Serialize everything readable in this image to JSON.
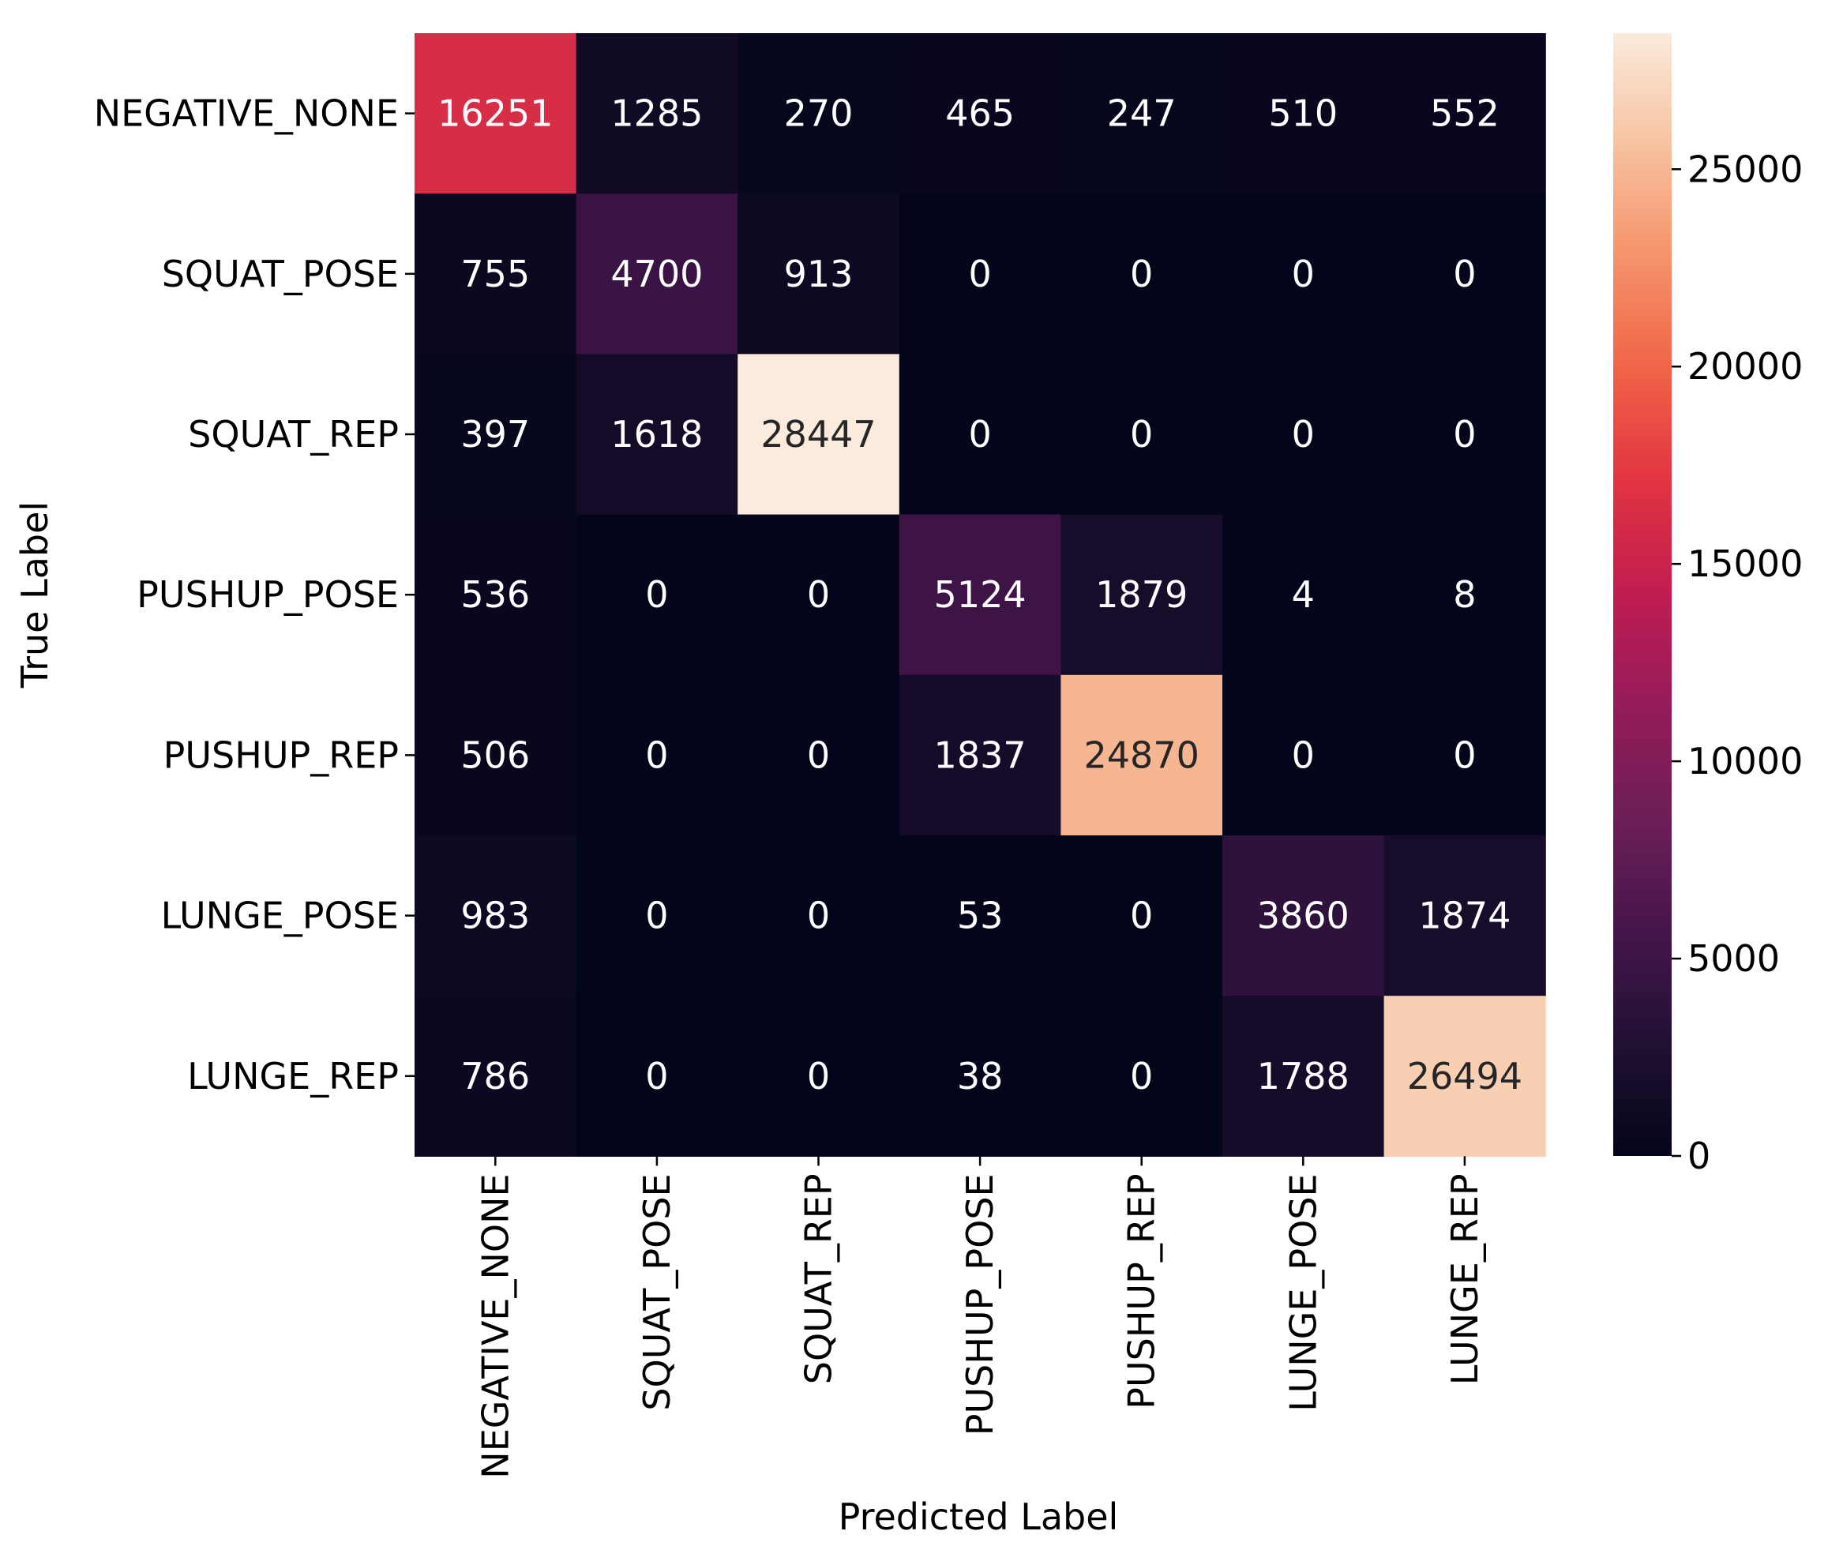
{
  "chart_data": {
    "type": "heatmap",
    "title": "",
    "xlabel": "Predicted Label",
    "ylabel": "True Label",
    "x_categories": [
      "NEGATIVE_NONE",
      "SQUAT_POSE",
      "SQUAT_REP",
      "PUSHUP_POSE",
      "PUSHUP_REP",
      "LUNGE_POSE",
      "LUNGE_REP"
    ],
    "y_categories": [
      "NEGATIVE_NONE",
      "SQUAT_POSE",
      "SQUAT_REP",
      "PUSHUP_POSE",
      "PUSHUP_REP",
      "LUNGE_POSE",
      "LUNGE_REP"
    ],
    "values": [
      [
        16251,
        1285,
        270,
        465,
        247,
        510,
        552
      ],
      [
        755,
        4700,
        913,
        0,
        0,
        0,
        0
      ],
      [
        397,
        1618,
        28447,
        0,
        0,
        0,
        0
      ],
      [
        536,
        0,
        0,
        5124,
        1879,
        4,
        8
      ],
      [
        506,
        0,
        0,
        1837,
        24870,
        0,
        0
      ],
      [
        983,
        0,
        0,
        53,
        0,
        3860,
        1874
      ],
      [
        786,
        0,
        0,
        38,
        0,
        1788,
        26494
      ]
    ],
    "colorbar": {
      "colormap": "rocket",
      "range": [
        0,
        28447
      ],
      "ticks": [
        0,
        5000,
        10000,
        15000,
        20000,
        25000
      ],
      "tick_labels": [
        "0",
        "5000",
        "10000",
        "15000",
        "20000",
        "25000"
      ]
    }
  }
}
